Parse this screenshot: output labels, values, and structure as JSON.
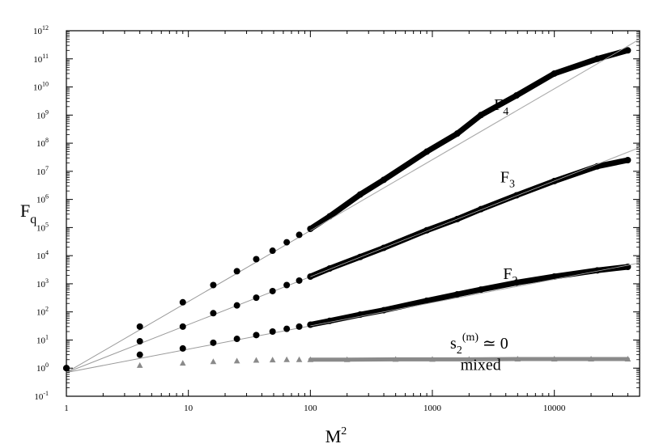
{
  "chart_data": {
    "type": "scatter",
    "xscale": "log",
    "yscale": "log",
    "xlim": [
      1,
      50000
    ],
    "ylim": [
      0.1,
      1000000000000
    ],
    "xlabel": "M",
    "xlabel_sup": "2",
    "ylabel": "F",
    "ylabel_sub": "q",
    "x_ticks": [
      {
        "value": 1,
        "label": "1"
      },
      {
        "value": 10,
        "label": "10"
      },
      {
        "value": 100,
        "label": "100"
      },
      {
        "value": 1000,
        "label": "1000"
      },
      {
        "value": 10000,
        "label": "10000"
      }
    ],
    "y_ticks": [
      {
        "exp": -1,
        "base": "10",
        "sup": "-1"
      },
      {
        "exp": 0,
        "base": "10",
        "sup": "0"
      },
      {
        "exp": 1,
        "base": "10",
        "sup": "1"
      },
      {
        "exp": 2,
        "base": "10",
        "sup": "2"
      },
      {
        "exp": 3,
        "base": "10",
        "sup": "3"
      },
      {
        "exp": 4,
        "base": "10",
        "sup": "4"
      },
      {
        "exp": 5,
        "base": "10",
        "sup": "5"
      },
      {
        "exp": 6,
        "base": "10",
        "sup": "6"
      },
      {
        "exp": 7,
        "base": "10",
        "sup": "7"
      },
      {
        "exp": 8,
        "base": "10",
        "sup": "8"
      },
      {
        "exp": 9,
        "base": "10",
        "sup": "9"
      },
      {
        "exp": 10,
        "base": "10",
        "sup": "10"
      },
      {
        "exp": 11,
        "base": "10",
        "sup": "11"
      },
      {
        "exp": 12,
        "base": "10",
        "sup": "12"
      }
    ],
    "series": [
      {
        "name": "F4",
        "marker": "circle",
        "color": "#000000",
        "x": [
          1,
          4,
          9,
          16,
          25,
          36,
          49,
          64,
          81,
          100,
          144,
          256,
          400,
          900,
          1600,
          2500,
          4900,
          10000,
          22500,
          40000
        ],
        "y": [
          1,
          30,
          220,
          900,
          2800,
          7500,
          15000,
          30000,
          55000,
          90000,
          250000,
          1500000,
          5000000,
          50000000,
          220000000,
          1000000000,
          5000000000,
          30000000000,
          100000000000,
          200000000000
        ]
      },
      {
        "name": "F3",
        "marker": "circle",
        "color": "#000000",
        "x": [
          1,
          4,
          9,
          16,
          25,
          36,
          49,
          64,
          81,
          100,
          144,
          256,
          400,
          900,
          1600,
          2500,
          4900,
          10000,
          22500,
          40000
        ],
        "y": [
          1,
          9,
          30,
          90,
          170,
          320,
          550,
          900,
          1300,
          1800,
          3500,
          9000,
          19000,
          80000,
          200000,
          450000,
          1400000,
          4500000,
          15000000,
          25000000
        ]
      },
      {
        "name": "F2",
        "marker": "circle",
        "color": "#000000",
        "x": [
          1,
          4,
          9,
          16,
          25,
          36,
          49,
          64,
          81,
          100,
          144,
          256,
          400,
          900,
          1600,
          2500,
          4900,
          10000,
          22500,
          40000
        ],
        "y": [
          1,
          3,
          5,
          8,
          11,
          15,
          20,
          25,
          30,
          35,
          48,
          80,
          115,
          250,
          420,
          620,
          1100,
          1800,
          3000,
          4000
        ]
      },
      {
        "name": "mixed",
        "marker": "triangle",
        "color": "#8a8a8a",
        "x": [
          4,
          9,
          16,
          25,
          36,
          49,
          64,
          81,
          100,
          200,
          500,
          1000,
          2000,
          5000,
          10000,
          20000,
          40000
        ],
        "y": [
          1.25,
          1.5,
          1.7,
          1.8,
          1.9,
          1.95,
          2.0,
          2.0,
          2.0,
          2.0,
          2.05,
          2.05,
          2.05,
          2.1,
          2.1,
          2.1,
          2.1
        ]
      }
    ],
    "fit_lines": [
      {
        "x": [
          1,
          50000
        ],
        "y": [
          0.7,
          500000000000
        ],
        "color": "#9a9a9a"
      },
      {
        "x": [
          1,
          50000
        ],
        "y": [
          0.7,
          70000000
        ],
        "color": "#9a9a9a"
      },
      {
        "x": [
          1,
          50000
        ],
        "y": [
          0.7,
          5500
        ],
        "color": "#9a9a9a"
      },
      {
        "x": [
          100,
          40000
        ],
        "y": [
          2.05,
          2.05
        ],
        "color": "#000000"
      }
    ],
    "annotations": [
      {
        "text": "F",
        "sub": "4",
        "x": 3200,
        "y": 1500000000
      },
      {
        "text": "F",
        "sub": "3",
        "x": 3600,
        "y": 4000000
      },
      {
        "text": "F",
        "sub": "2",
        "x": 3800,
        "y": 1500
      },
      {
        "text": "s",
        "sub": "2",
        "sup": "(m)",
        "after": " ≃ 0",
        "x": 1400,
        "y": 5
      },
      {
        "text": "mixed",
        "x": 1700,
        "y": 0.85
      }
    ]
  }
}
